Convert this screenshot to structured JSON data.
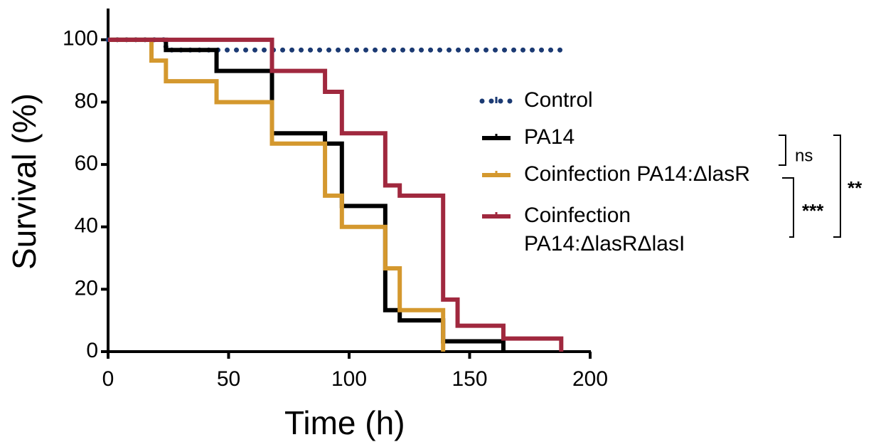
{
  "chart_data": {
    "type": "line",
    "step": "post",
    "xlabel": "Time (h)",
    "ylabel": "Survival (%)",
    "xlim": [
      0,
      200
    ],
    "xticks": [
      0,
      50,
      100,
      150,
      200
    ],
    "ylim": [
      0,
      110
    ],
    "yticks": [
      0,
      20,
      40,
      60,
      80,
      100
    ],
    "grid": false,
    "series": [
      {
        "name": "Control",
        "color": "#1b3a73",
        "dash": "dotted",
        "x": [
          0,
          24,
          188
        ],
        "values": [
          100,
          96.7,
          96.7
        ]
      },
      {
        "name": "PA14",
        "color": "#000000",
        "dash": "solid",
        "x": [
          0,
          24,
          45,
          68,
          90,
          97,
          115,
          121,
          139,
          164
        ],
        "values": [
          100,
          96.7,
          90,
          70,
          66.7,
          46.7,
          13.3,
          10,
          3.3,
          0
        ]
      },
      {
        "name": "Coinfection PA14:ΔlasR",
        "color": "#d4982e",
        "dash": "solid",
        "x": [
          0,
          18,
          24,
          45,
          68,
          90,
          97,
          115,
          121,
          139
        ],
        "values": [
          100,
          93.3,
          86.7,
          80,
          66.7,
          50,
          40,
          26.7,
          13.3,
          0
        ]
      },
      {
        "name": "Coinfection PA14:ΔlasRΔlasI",
        "color": "#a0283e",
        "dash": "solid",
        "x": [
          0,
          68,
          90,
          97,
          115,
          121,
          139,
          145,
          164,
          188
        ],
        "values": [
          100,
          90,
          83.3,
          70,
          53.3,
          50,
          16.7,
          8.3,
          4.2,
          0
        ]
      }
    ],
    "annotations": [
      "ns",
      "***",
      "**"
    ]
  }
}
